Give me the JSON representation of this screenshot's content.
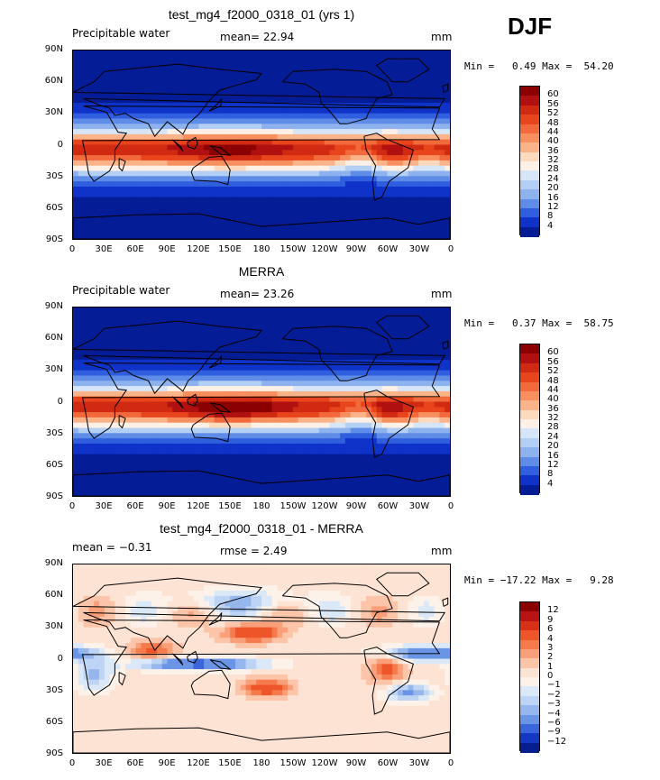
{
  "season": "DJF",
  "panels": [
    {
      "title": "test_mg4_f2000_0318_01 (yrs 1)",
      "left_label": "Precipitable water",
      "mid_label": "mean=  22.94",
      "right_label": "mm",
      "minmax": "Min =   0.49 Max =  54.20",
      "colorbar_labels": [
        "60",
        "56",
        "52",
        "48",
        "44",
        "40",
        "36",
        "32",
        "28",
        "24",
        "20",
        "16",
        "12",
        "8",
        "4"
      ],
      "colorbar_colors": [
        "#8b0000",
        "#b01010",
        "#d02a12",
        "#e8451c",
        "#f26a3c",
        "#f7905e",
        "#fbb489",
        "#fdd9bd",
        "#fdf0e6",
        "#d6e6f8",
        "#b3cff4",
        "#8db2ee",
        "#5e8ce6",
        "#2f5ede",
        "#0f33c8",
        "#041c96"
      ],
      "field": "pw_model"
    },
    {
      "title": "MERRA",
      "left_label": "Precipitable water",
      "mid_label": "mean=  23.26",
      "right_label": "mm",
      "minmax": "Min =   0.37 Max =  58.75",
      "colorbar_labels": [
        "60",
        "56",
        "52",
        "48",
        "44",
        "40",
        "36",
        "32",
        "28",
        "24",
        "20",
        "16",
        "12",
        "8",
        "4"
      ],
      "colorbar_colors": [
        "#8b0000",
        "#b01010",
        "#d02a12",
        "#e8451c",
        "#f26a3c",
        "#f7905e",
        "#fbb489",
        "#fdd9bd",
        "#fdf0e6",
        "#d6e6f8",
        "#b3cff4",
        "#8db2ee",
        "#5e8ce6",
        "#2f5ede",
        "#0f33c8",
        "#041c96"
      ],
      "field": "pw_obs"
    },
    {
      "title": "test_mg4_f2000_0318_01 - MERRA",
      "left_label": "mean =  −0.31",
      "mid_label": "rmse =   2.49",
      "right_label": "mm",
      "minmax": "Min = −17.22 Max =   9.28",
      "colorbar_labels": [
        "12",
        "9",
        "6",
        "4",
        "3",
        "2",
        "1",
        "0",
        "−1",
        "−2",
        "−3",
        "−4",
        "−6",
        "−9",
        "−12"
      ],
      "colorbar_colors": [
        "#8b0000",
        "#b81414",
        "#d93018",
        "#ee5528",
        "#f57a4c",
        "#f9a07a",
        "#fcc4a8",
        "#fde3d4",
        "#fdf2ea",
        "#dbe8f8",
        "#bed4f4",
        "#96b7ee",
        "#6a94e6",
        "#3a66dc",
        "#1438c4",
        "#071e90"
      ],
      "field": "pw_diff"
    }
  ],
  "lat_labels": [
    "90N",
    "60N",
    "30N",
    "0",
    "30S",
    "60S",
    "90S"
  ],
  "lon_labels": [
    "0",
    "30E",
    "60E",
    "90E",
    "120E",
    "150E",
    "180",
    "150W",
    "120W",
    "90W",
    "60W",
    "30W",
    "0"
  ]
}
